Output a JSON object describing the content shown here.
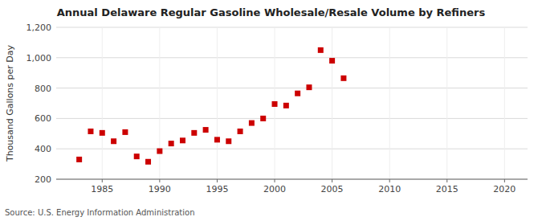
{
  "chart_data": {
    "type": "scatter",
    "title": "Annual Delaware Regular Gasoline Wholesale/Resale Volume by Refiners",
    "ylabel": "Thousand Gallons per Day",
    "source": "Source: U.S. Energy Information Administration",
    "x": [
      1983,
      1984,
      1985,
      1986,
      1987,
      1988,
      1989,
      1990,
      1991,
      1992,
      1993,
      1994,
      1995,
      1996,
      1997,
      1998,
      1999,
      2000,
      2001,
      2002,
      2003,
      2004,
      2005,
      2006
    ],
    "values": [
      330,
      515,
      505,
      450,
      510,
      350,
      315,
      385,
      435,
      455,
      505,
      525,
      460,
      450,
      515,
      570,
      600,
      695,
      685,
      765,
      805,
      1050,
      980,
      865
    ],
    "color": "#cc0000",
    "marker": "square",
    "xlim": [
      1981,
      2022
    ],
    "ylim": [
      200,
      1200
    ],
    "xticks": [
      1985,
      1990,
      1995,
      2000,
      2005,
      2010,
      2015,
      2020
    ],
    "yticks": [
      200,
      400,
      600,
      800,
      {
        "value": 1000,
        "label": "1,000"
      },
      {
        "value": 1200,
        "label": "1,200"
      }
    ],
    "grid": true
  }
}
